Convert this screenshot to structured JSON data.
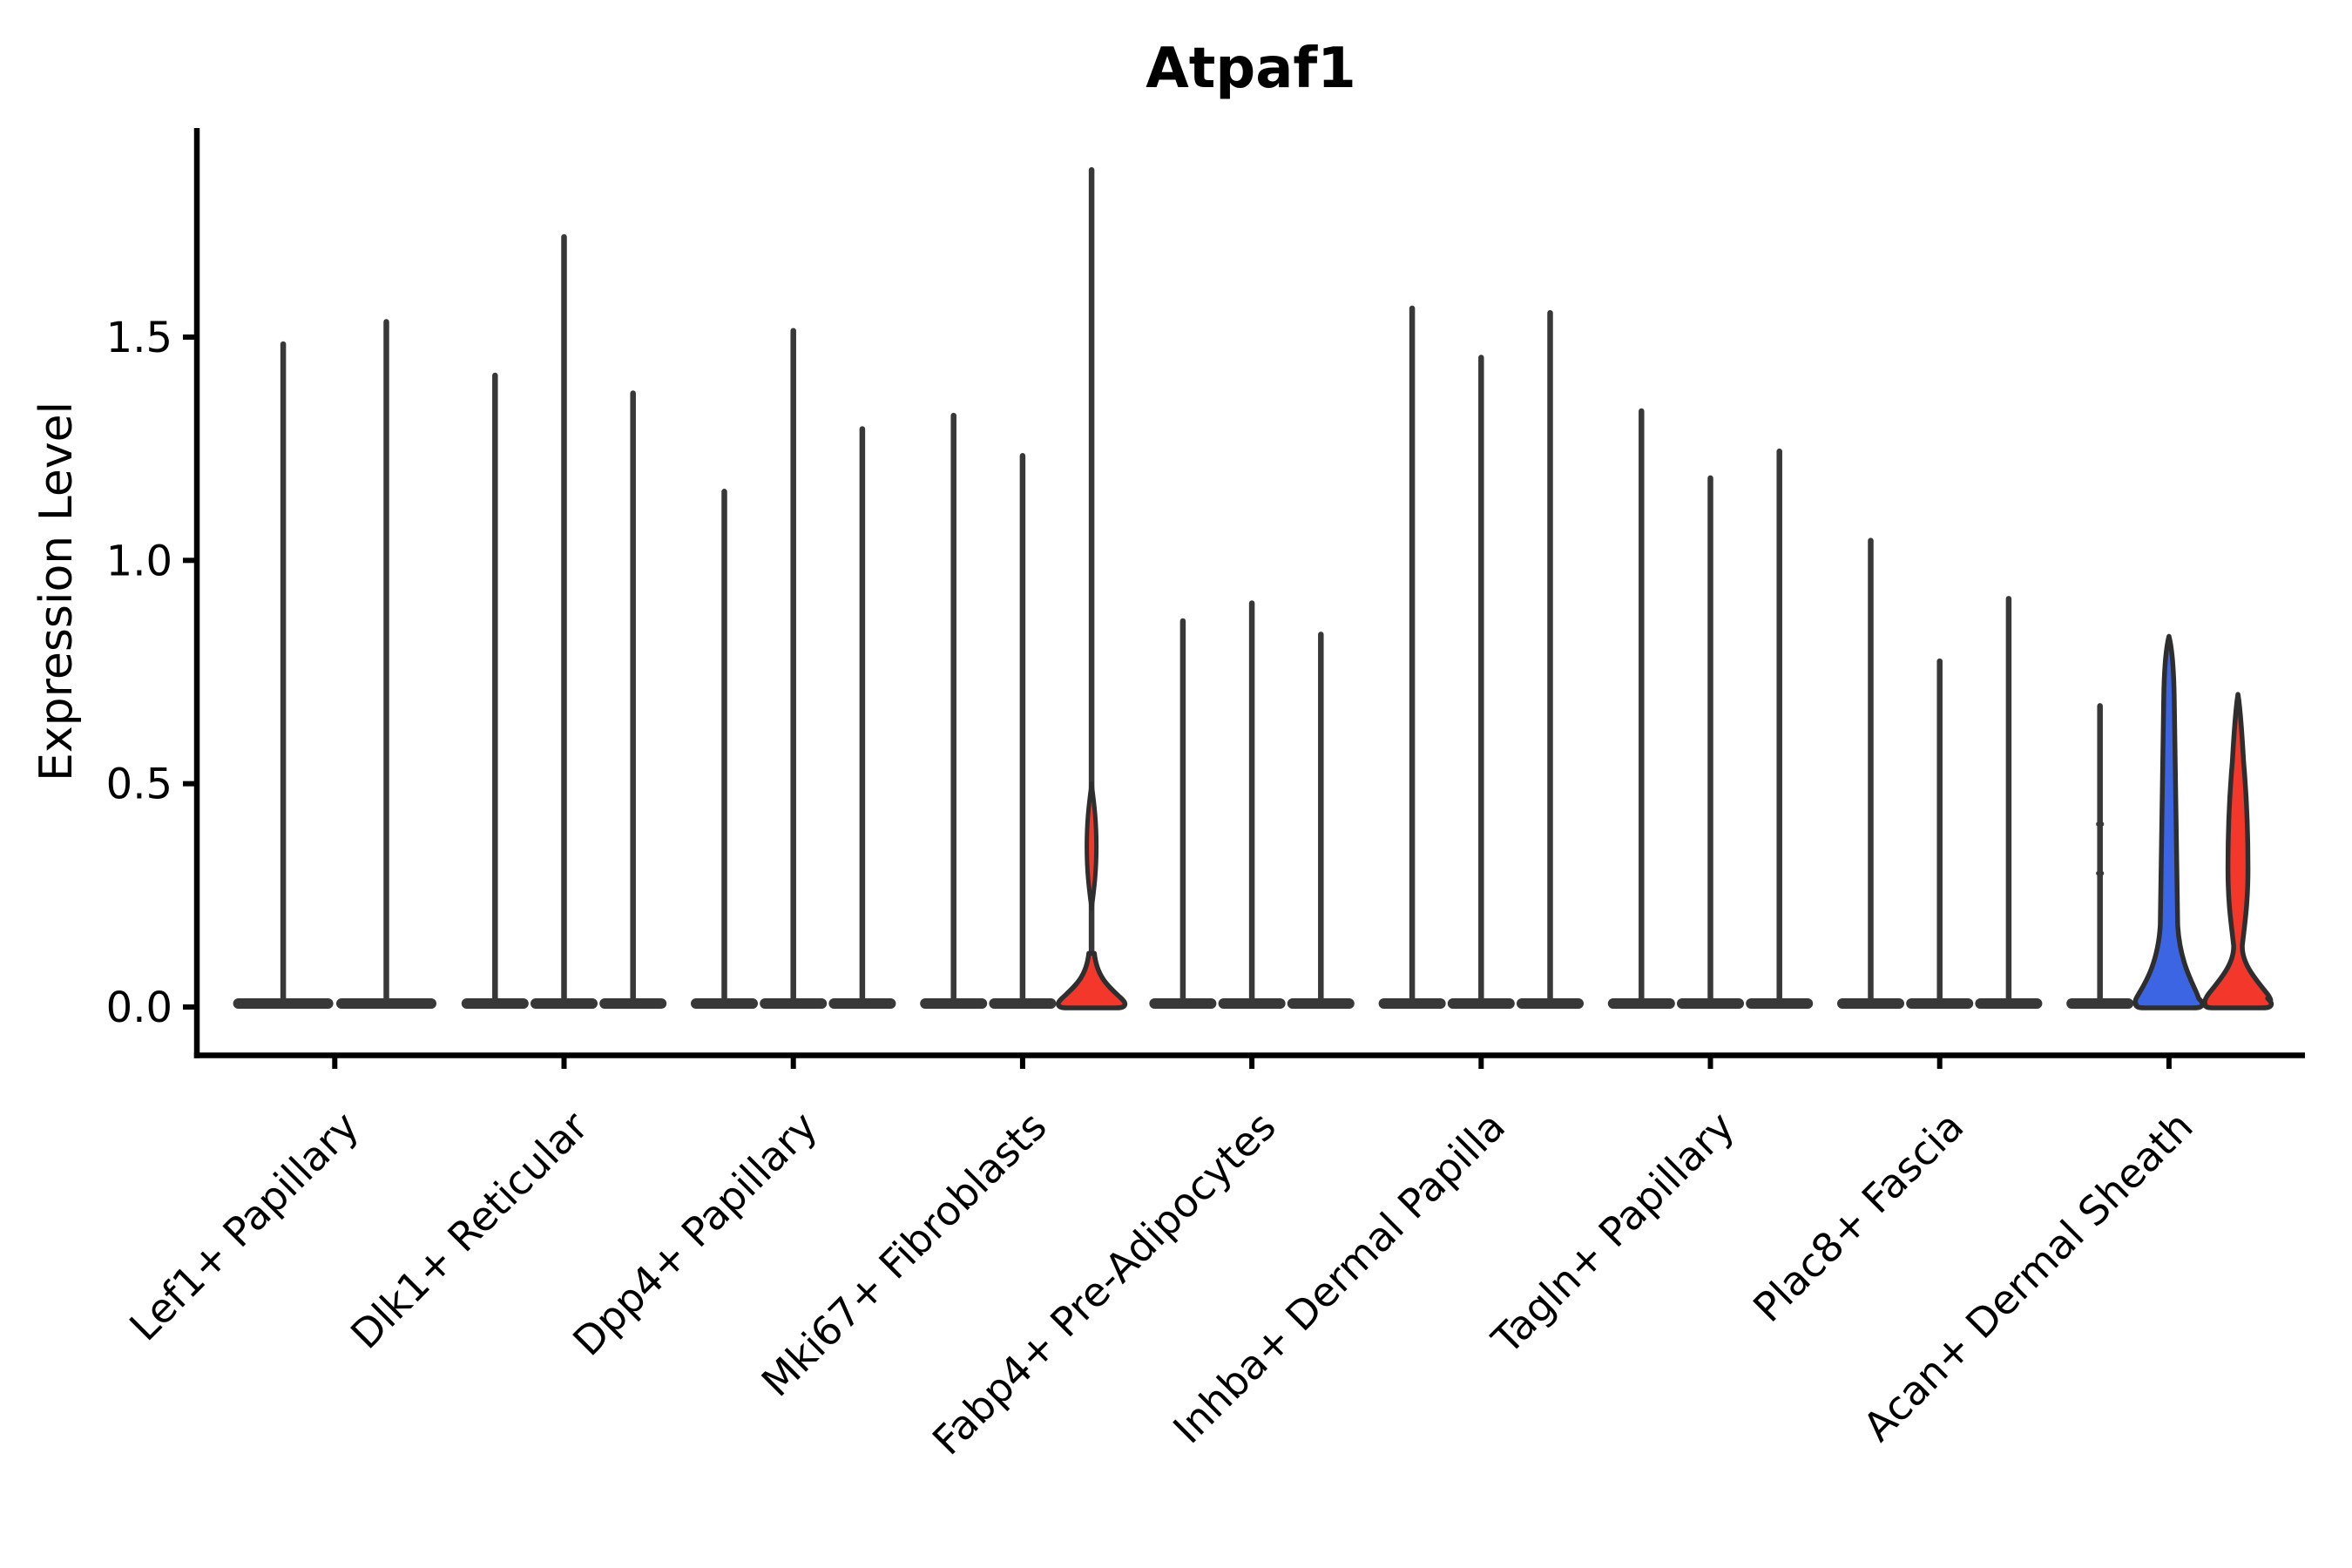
{
  "chart_data": {
    "type": "violin",
    "title": "Atpaf1",
    "ylabel": "Expression Level",
    "xlabel": "",
    "ytick_labels": [
      "0.0",
      "0.5",
      "1.0",
      "1.5"
    ],
    "ytick_values": [
      0.0,
      0.5,
      1.0,
      1.5
    ],
    "ylim": [
      -0.11,
      2.0
    ],
    "grid": false,
    "legend_position": "none",
    "categories": [
      "Lef1+ Papillary",
      "Dlk1+ Reticular",
      "Dpp4+ Papillary",
      "Mki67+ Fibroblasts",
      "Fabp4+ Pre-Adipocytes",
      "Inhba+ Dermal Papilla",
      "Tagln+ Papillary",
      "Plac8+ Fascia",
      "Acan+ Dermal Sheath"
    ],
    "colors": {
      "dark": "#383838",
      "outline": "#2e2e2e",
      "red": "#f3372a",
      "blue": "#3b65e3",
      "axis": "#000000"
    },
    "groups": [
      {
        "category": "Lef1+ Papillary",
        "violins": [
          {
            "max": 1.49,
            "color": "dark",
            "shape": "needle"
          },
          {
            "max": 1.54,
            "color": "dark",
            "shape": "needle"
          }
        ]
      },
      {
        "category": "Dlk1+ Reticular",
        "violins": [
          {
            "max": 1.42,
            "color": "dark",
            "shape": "needle"
          },
          {
            "max": 1.73,
            "color": "dark",
            "shape": "needle"
          },
          {
            "max": 1.38,
            "color": "dark",
            "shape": "needle"
          }
        ]
      },
      {
        "category": "Dpp4+ Papillary",
        "violins": [
          {
            "max": 1.16,
            "color": "dark",
            "shape": "needle"
          },
          {
            "max": 1.52,
            "color": "dark",
            "shape": "needle"
          },
          {
            "max": 1.3,
            "color": "dark",
            "shape": "needle"
          }
        ]
      },
      {
        "category": "Mki67+ Fibroblasts",
        "violins": [
          {
            "max": 1.33,
            "color": "dark",
            "shape": "needle"
          },
          {
            "max": 1.24,
            "color": "dark",
            "shape": "needle"
          },
          {
            "max": 1.88,
            "color": "red",
            "shape": "needle-spindle-bell",
            "spindle": {
              "top": 0.5,
              "peak": 0.36,
              "bottom": 0.22,
              "half_width": 5.5
            },
            "bell": {
              "start": 0.12,
              "half_width": 39
            }
          }
        ]
      },
      {
        "category": "Fabp4+ Pre-Adipocytes",
        "violins": [
          {
            "max": 0.87,
            "color": "dark",
            "shape": "needle"
          },
          {
            "max": 0.91,
            "color": "dark",
            "shape": "needle"
          },
          {
            "max": 0.84,
            "color": "dark",
            "shape": "needle"
          }
        ]
      },
      {
        "category": "Inhba+ Dermal Papilla",
        "violins": [
          {
            "max": 1.57,
            "color": "dark",
            "shape": "needle"
          },
          {
            "max": 1.46,
            "color": "dark",
            "shape": "needle"
          },
          {
            "max": 1.56,
            "color": "dark",
            "shape": "needle"
          }
        ]
      },
      {
        "category": "Tagln+ Papillary",
        "violins": [
          {
            "max": 1.34,
            "color": "dark",
            "shape": "needle"
          },
          {
            "max": 1.19,
            "color": "dark",
            "shape": "needle"
          },
          {
            "max": 1.25,
            "color": "dark",
            "shape": "needle"
          }
        ]
      },
      {
        "category": "Plac8+ Fascia",
        "violins": [
          {
            "max": 1.05,
            "color": "dark",
            "shape": "needle"
          },
          {
            "max": 0.78,
            "color": "dark",
            "shape": "needle"
          },
          {
            "max": 0.92,
            "color": "dark",
            "shape": "needle"
          }
        ]
      },
      {
        "category": "Acan+ Dermal Sheath",
        "violins": [
          {
            "max": 0.68,
            "color": "dark",
            "shape": "needle",
            "marks": [
              0.41,
              0.3
            ]
          },
          {
            "max": 0.83,
            "color": "blue",
            "shape": "cone-bell",
            "bell": {
              "start": 0.17,
              "half_width": 39
            }
          },
          {
            "max": 0.7,
            "color": "red",
            "shape": "spindle-bell",
            "spindle": {
              "top": 0.5,
              "peak": 0.31,
              "bottom": 0.13,
              "half_width": 11.5
            },
            "bell": {
              "start": 0.13,
              "half_width": 39
            }
          }
        ]
      }
    ]
  }
}
